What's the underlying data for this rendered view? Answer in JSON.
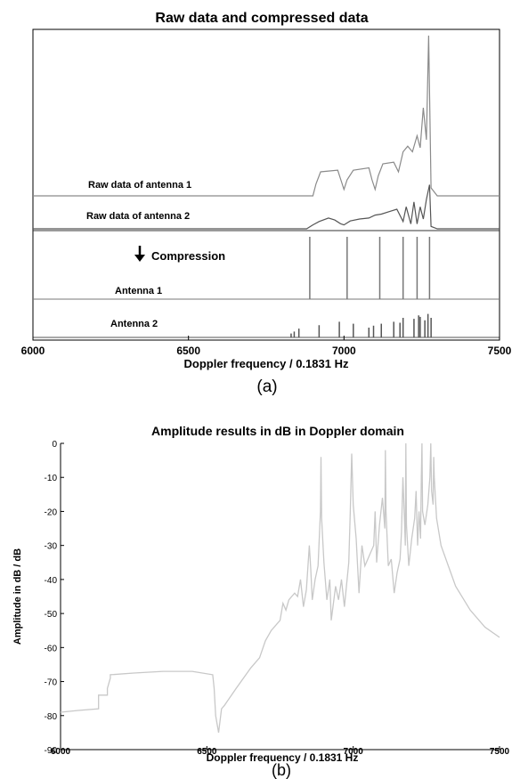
{
  "panels": {
    "a": {
      "caption": "(a)"
    },
    "b": {
      "caption": "(b)"
    }
  },
  "chart_data": [
    {
      "type": "line",
      "title": "Raw data and compressed data",
      "xlabel": "Doppler frequency / 0.1831 Hz",
      "ylabel": "",
      "xlim": [
        6000,
        7500
      ],
      "xticks": [
        6000,
        6500,
        7000,
        7500
      ],
      "grid": false,
      "y_axis_labeled": false,
      "stacked_traces": true,
      "annotation": "Compression",
      "series": [
        {
          "name": "Raw data of antenna 1",
          "color": "#8a8a8a",
          "x": [
            6000,
            6900,
            6910,
            6925,
            6980,
            6990,
            7000,
            7010,
            7030,
            7080,
            7090,
            7100,
            7110,
            7125,
            7160,
            7175,
            7190,
            7205,
            7220,
            7235,
            7245,
            7255,
            7265,
            7272,
            7280,
            7300,
            7500
          ],
          "y": [
            0,
            0,
            15,
            30,
            32,
            20,
            8,
            20,
            32,
            35,
            20,
            8,
            25,
            40,
            42,
            30,
            55,
            62,
            55,
            75,
            60,
            110,
            70,
            200,
            10,
            0,
            0
          ]
        },
        {
          "name": "Raw data of antenna 2",
          "color": "#555555",
          "x": [
            6000,
            6880,
            6900,
            6920,
            6950,
            6970,
            6990,
            7000,
            7020,
            7050,
            7080,
            7100,
            7120,
            7150,
            7170,
            7190,
            7200,
            7215,
            7225,
            7235,
            7245,
            7255,
            7265,
            7275,
            7280,
            7300,
            7500
          ],
          "y": [
            0,
            0,
            8,
            15,
            22,
            18,
            10,
            8,
            16,
            20,
            22,
            28,
            30,
            36,
            40,
            15,
            45,
            10,
            55,
            10,
            45,
            20,
            60,
            90,
            5,
            0,
            0
          ]
        },
        {
          "name": "Antenna 1",
          "color": "#777777",
          "peaks_x": [
            6890,
            7010,
            7115,
            7190,
            7235,
            7275
          ],
          "peaks_y": [
            70,
            70,
            70,
            70,
            70,
            70
          ]
        },
        {
          "name": "Antenna 2",
          "color": "#555555",
          "peaks_x": [
            6830,
            6840,
            6855,
            6920,
            6985,
            7030,
            7080,
            7095,
            7120,
            7160,
            7180,
            7190,
            7225,
            7240,
            7245,
            7260,
            7270,
            7280
          ],
          "peaks_y": [
            8,
            12,
            18,
            25,
            32,
            28,
            20,
            24,
            28,
            32,
            30,
            40,
            38,
            45,
            42,
            35,
            48,
            40
          ]
        }
      ]
    },
    {
      "type": "line",
      "title": "Amplitude results in dB in Doppler domain",
      "xlabel": "Doppler frequency / 0.1831 Hz",
      "ylabel": "Amplitude in dB / dB",
      "xlim": [
        6000,
        7500
      ],
      "ylim": [
        -90,
        0
      ],
      "xticks": [
        6000,
        6500,
        7000,
        7500
      ],
      "yticks": [
        0,
        -10,
        -20,
        -30,
        -40,
        -50,
        -60,
        -70,
        -80,
        -90
      ],
      "grid": false,
      "series": [
        {
          "color": "#c8c8c8",
          "x": [
            6000,
            6060,
            6130,
            6130,
            6160,
            6160,
            6170,
            6170,
            6250,
            6350,
            6450,
            6520,
            6525,
            6530,
            6540,
            6550,
            6560,
            6600,
            6650,
            6680,
            6700,
            6720,
            6750,
            6760,
            6770,
            6780,
            6790,
            6800,
            6810,
            6820,
            6830,
            6840,
            6850,
            6855,
            6860,
            6870,
            6880,
            6888,
            6890,
            6892,
            6900,
            6910,
            6920,
            6925,
            6940,
            6950,
            6960,
            6970,
            6985,
            6990,
            6995,
            7000,
            7010,
            7020,
            7030,
            7040,
            7050,
            7060,
            7070,
            7075,
            7080,
            7090,
            7100,
            7108,
            7110,
            7112,
            7120,
            7130,
            7140,
            7150,
            7160,
            7165,
            7170,
            7175,
            7178,
            7180,
            7182,
            7190,
            7200,
            7210,
            7215,
            7220,
            7225,
            7230,
            7233,
            7235,
            7237,
            7245,
            7255,
            7262,
            7265,
            7268,
            7273,
            7275,
            7277,
            7285,
            7300,
            7350,
            7400,
            7450,
            7500
          ],
          "y": [
            -79,
            -78.5,
            -78,
            -74,
            -74,
            -72,
            -69,
            -68,
            -67.5,
            -67,
            -67,
            -68,
            -72,
            -80,
            -85,
            -78,
            -77,
            -72,
            -66,
            -63,
            -58,
            -55,
            -52,
            -47,
            -49,
            -46,
            -45,
            -44,
            -45,
            -40,
            -48,
            -43,
            -30,
            -37,
            -46,
            -40,
            -36,
            -20,
            -4,
            -22,
            -35,
            -46,
            -40,
            -52,
            -42,
            -46,
            -40,
            -48,
            -35,
            -20,
            -3,
            -18,
            -28,
            -44,
            -30,
            -36,
            -34,
            -32,
            -30,
            -20,
            -35,
            -24,
            -16,
            -25,
            -2,
            -20,
            -36,
            -34,
            -44,
            -38,
            -34,
            -26,
            -10,
            -22,
            -30,
            0,
            -24,
            -36,
            -28,
            -22,
            -14,
            -30,
            -20,
            -28,
            -10,
            0,
            -20,
            -24,
            -18,
            -10,
            0,
            -14,
            -18,
            -4,
            -10,
            -22,
            -30,
            -42,
            -49,
            -54,
            -57
          ]
        }
      ]
    }
  ]
}
